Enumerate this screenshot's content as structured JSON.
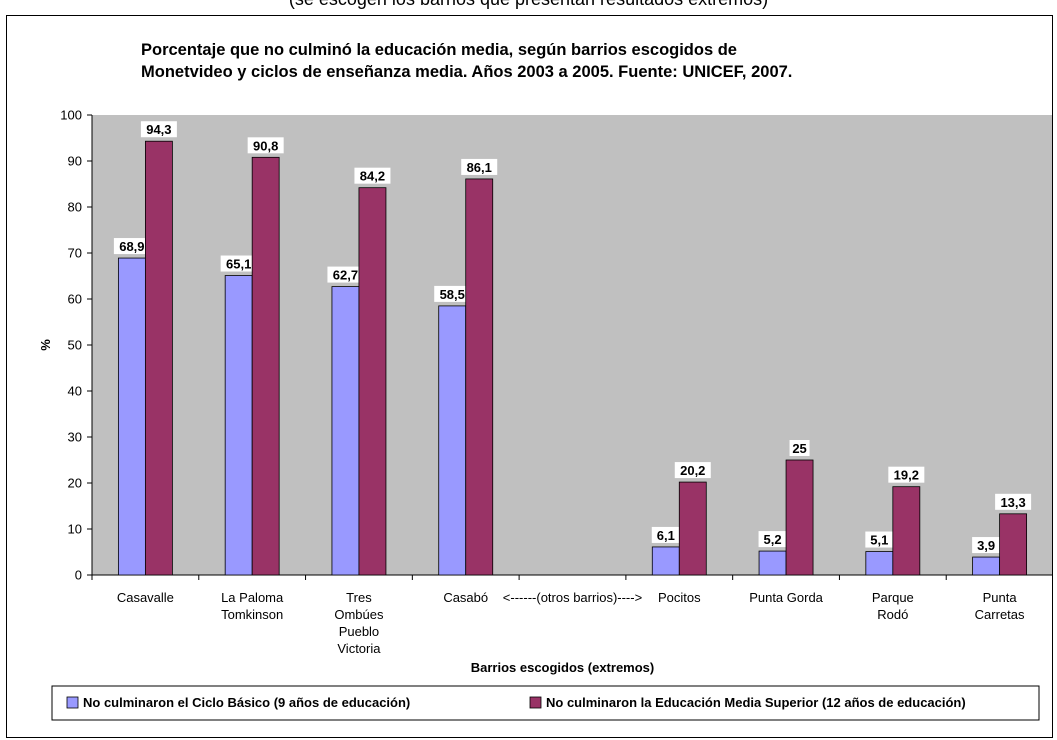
{
  "caption": "(se escogen los barrios que presentan resultados extremos)",
  "chart_data": {
    "type": "bar",
    "title_lines": [
      "Porcentaje que no culminó la educación media, según barrios escogidos de",
      "Monetvideo y ciclos de enseñanza media. Años 2003 a 2005. Fuente: UNICEF, 2007."
    ],
    "xlabel": "Barrios escogidos (extremos)",
    "ylabel": "%",
    "ylim": [
      0,
      100
    ],
    "yticks": [
      0,
      10,
      20,
      30,
      40,
      50,
      60,
      70,
      80,
      90,
      100
    ],
    "grid": false,
    "legend_position": "bottom",
    "categories": [
      [
        "Casavalle"
      ],
      [
        "La Paloma",
        "Tomkinson"
      ],
      [
        "Tres",
        "Ombúes",
        "Pueblo",
        "Victoria"
      ],
      [
        "Casabó"
      ],
      [
        "<------(otros   barrios)---->"
      ],
      [
        "Pocitos"
      ],
      [
        "Punta Gorda"
      ],
      [
        "Parque",
        "Rodó"
      ],
      [
        "Punta",
        "Carretas"
      ]
    ],
    "series": [
      {
        "name": "No culminaron el Ciclo Básico (9 años de educación)",
        "color": "#9999ff",
        "values": [
          68.9,
          65.1,
          62.7,
          58.5,
          null,
          6.1,
          5.2,
          5.1,
          3.9
        ],
        "labels": [
          "68,9",
          "65,1",
          "62,7",
          "58,5",
          null,
          "6,1",
          "5,2",
          "5,1",
          "3,9"
        ]
      },
      {
        "name": "No culminaron la Educación Media Superior (12 años de educación)",
        "color": "#993366",
        "values": [
          94.3,
          90.8,
          84.2,
          86.1,
          null,
          20.2,
          25,
          19.2,
          13.3
        ],
        "labels": [
          "94,3",
          "90,8",
          "84,2",
          "86,1",
          null,
          "20,2",
          "25",
          "19,2",
          "13,3"
        ]
      }
    ]
  },
  "colors": {
    "plot_background": "#c0c0c0",
    "axis": "#000000"
  }
}
